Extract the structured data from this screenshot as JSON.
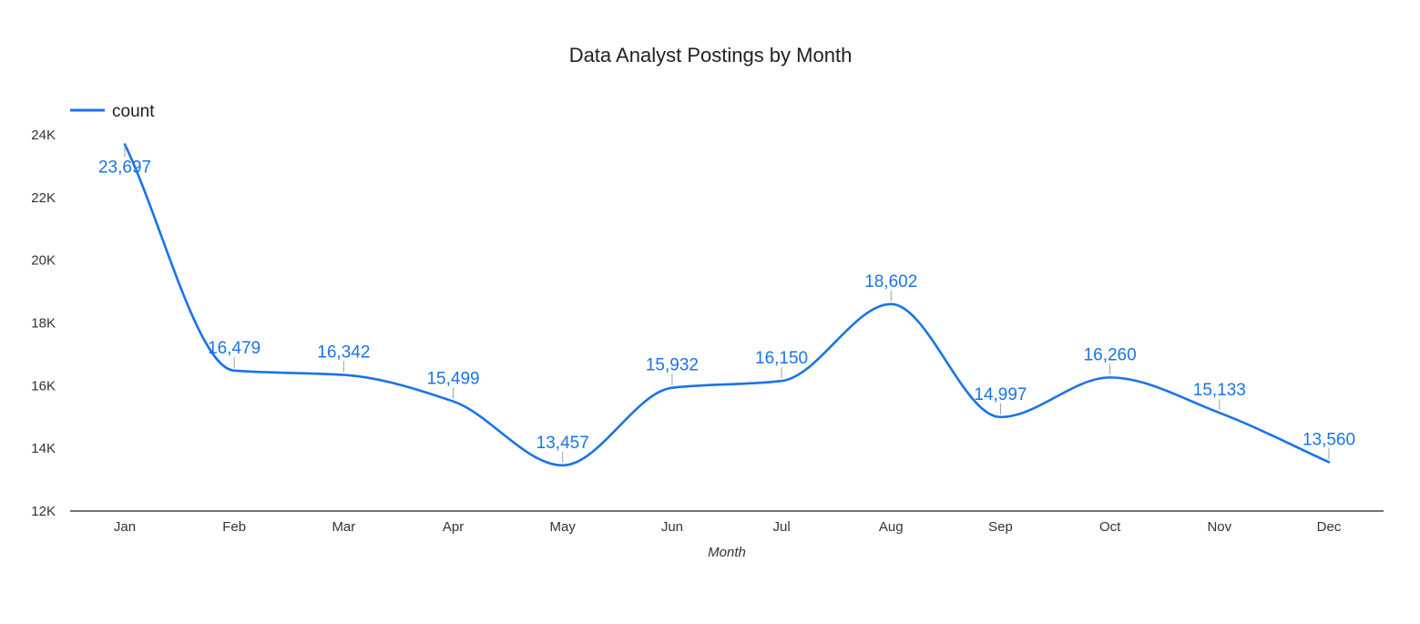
{
  "chart_data": {
    "type": "line",
    "title": "Data Analyst Postings by Month",
    "xlabel": "Month",
    "ylabel": "",
    "categories": [
      "Jan",
      "Feb",
      "Mar",
      "Apr",
      "May",
      "Jun",
      "Jul",
      "Aug",
      "Sep",
      "Oct",
      "Nov",
      "Dec"
    ],
    "series": [
      {
        "name": "count",
        "values": [
          23697,
          16479,
          16342,
          15499,
          13457,
          15932,
          16150,
          18602,
          14997,
          16260,
          15133,
          13560
        ],
        "labels": [
          "23,697",
          "16,479",
          "16,342",
          "15,499",
          "13,457",
          "15,932",
          "16,150",
          "18,602",
          "14,997",
          "16,260",
          "15,133",
          "13,560"
        ],
        "color": "#1a73e8"
      }
    ],
    "ylim": [
      12000,
      24000
    ],
    "yticks": [
      12000,
      14000,
      16000,
      18000,
      20000,
      22000,
      24000
    ],
    "ytick_labels": [
      "12K",
      "14K",
      "16K",
      "18K",
      "20K",
      "22K",
      "24K"
    ],
    "grid": false,
    "legend": "top-left",
    "smooth": true
  }
}
